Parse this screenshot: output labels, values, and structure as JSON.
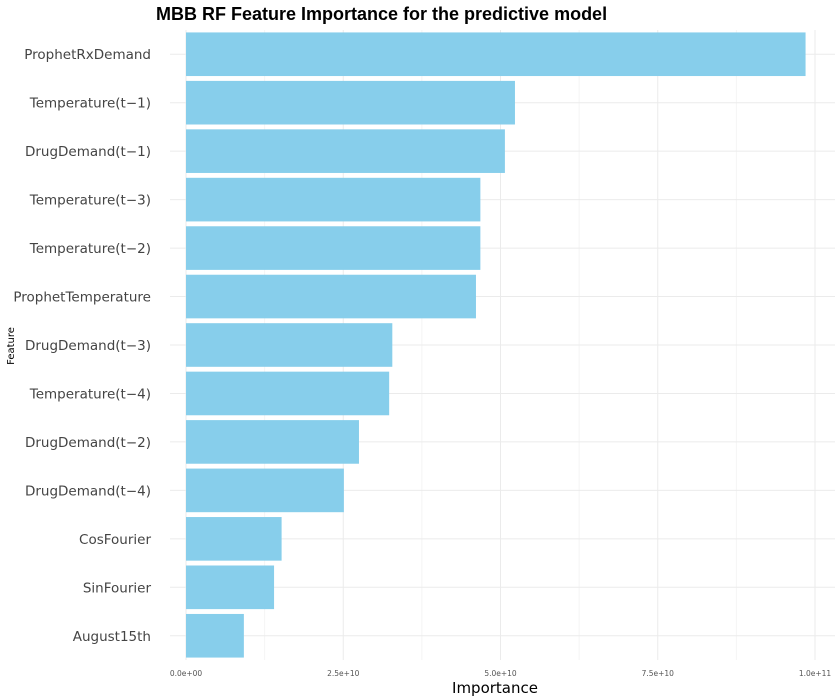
{
  "chart_data": {
    "type": "bar",
    "orientation": "horizontal",
    "title": "MBB RF Feature Importance for the predictive model",
    "xlabel": "Importance",
    "ylabel": "Feature",
    "categories": [
      "ProphetRxDemand",
      "Temperature(t−1)",
      "DrugDemand(t−1)",
      "Temperature(t−3)",
      "Temperature(t−2)",
      "ProphetTemperature",
      "DrugDemand(t−3)",
      "Temperature(t−4)",
      "DrugDemand(t−2)",
      "DrugDemand(t−4)",
      "CosFourier",
      "SinFourier",
      "August15th"
    ],
    "values": [
      98500000000,
      52300000000,
      50700000000,
      46800000000,
      46800000000,
      46100000000,
      32800000000,
      32300000000,
      27500000000,
      25100000000,
      15200000000,
      14000000000,
      9200000000
    ],
    "xlim": [
      0,
      103000000000
    ],
    "xticks": [
      0,
      25000000000,
      50000000000,
      75000000000,
      100000000000
    ],
    "xtick_labels": [
      "0.0e+00",
      "2.5e+10",
      "5.0e+10",
      "7.5e+10",
      "1.0e+11"
    ],
    "bar_color": "#87CEEB",
    "grid": true
  }
}
